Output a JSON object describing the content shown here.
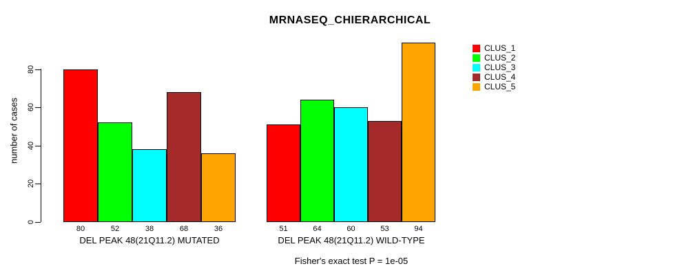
{
  "chart_data": {
    "type": "bar",
    "title": "MRNASEQ_CHIERARCHICAL",
    "ylabel": "number of cases",
    "xlabel": "",
    "ylim": [
      0,
      80
    ],
    "yticks": [
      0,
      20,
      40,
      60,
      80
    ],
    "grid": false,
    "legend_position": "right",
    "categories": [
      "DEL PEAK 48(21Q11.2) MUTATED",
      "DEL PEAK 48(21Q11.2) WILD-TYPE"
    ],
    "series": [
      {
        "name": "CLUS_1",
        "color": "#FF0000",
        "values": [
          80,
          51
        ]
      },
      {
        "name": "CLUS_2",
        "color": "#00FF00",
        "values": [
          52,
          64
        ]
      },
      {
        "name": "CLUS_3",
        "color": "#00FFFF",
        "values": [
          38,
          60
        ]
      },
      {
        "name": "CLUS_4",
        "color": "#A52A2A",
        "values": [
          68,
          53
        ]
      },
      {
        "name": "CLUS_5",
        "color": "#FFA500",
        "values": [
          36,
          94
        ]
      }
    ],
    "bar_labels": [
      [
        80,
        52,
        38,
        68,
        36
      ],
      [
        51,
        64,
        60,
        53,
        94
      ]
    ],
    "annotation": "Fisher's exact test P = 1e-05"
  }
}
